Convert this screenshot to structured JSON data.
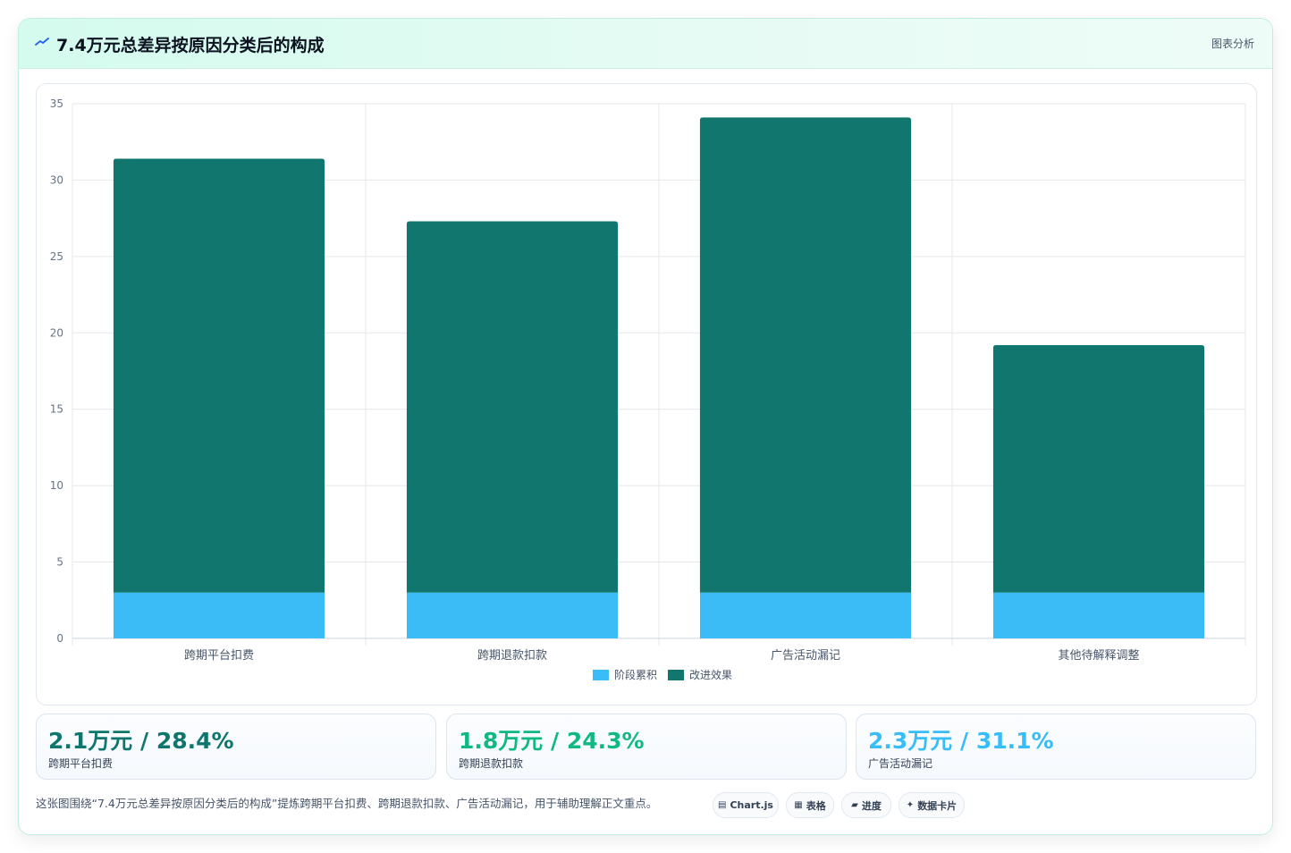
{
  "header": {
    "title": "7.4万元总差异按原因分类后的构成",
    "link_label": "图表分析"
  },
  "chart_data": {
    "type": "bar",
    "stacked": true,
    "categories": [
      "跨期平台扣费",
      "跨期退款扣款",
      "广告活动漏记",
      "其他待解释调整"
    ],
    "series": [
      {
        "name": "阶段累积",
        "color": "#3bbcf6",
        "values": [
          3,
          3,
          3,
          3
        ]
      },
      {
        "name": "改进效果",
        "color": "#10766e",
        "values": [
          28.4,
          24.3,
          31.1,
          16.2
        ]
      }
    ],
    "ylim": [
      0,
      35
    ],
    "yticks": [
      0,
      5,
      10,
      15,
      20,
      25,
      30,
      35
    ],
    "grid": true,
    "legend": "bottom"
  },
  "kpis": [
    {
      "value": "2.1万元 / 28.4%",
      "label": "跨期平台扣费",
      "color": "#0f766e"
    },
    {
      "value": "1.8万元 / 24.3%",
      "label": "跨期退款扣款",
      "color": "#10b981"
    },
    {
      "value": "2.3万元 / 31.1%",
      "label": "广告活动漏记",
      "color": "#38bdf8"
    }
  ],
  "caption": "这张图围绕“7.4万元总差异按原因分类后的构成”提炼跨期平台扣费、跨期退款扣款、广告活动漏记，用于辅助理解正文重点。",
  "chips": [
    {
      "icon": "▤",
      "icon_name": "chart-icon",
      "label": "Chart.js"
    },
    {
      "icon": "▦",
      "icon_name": "table-icon",
      "label": "表格"
    },
    {
      "icon": "▰",
      "icon_name": "progress-icon",
      "label": "进度"
    },
    {
      "icon": "✦",
      "icon_name": "sparkle-icon",
      "label": "数据卡片"
    }
  ]
}
